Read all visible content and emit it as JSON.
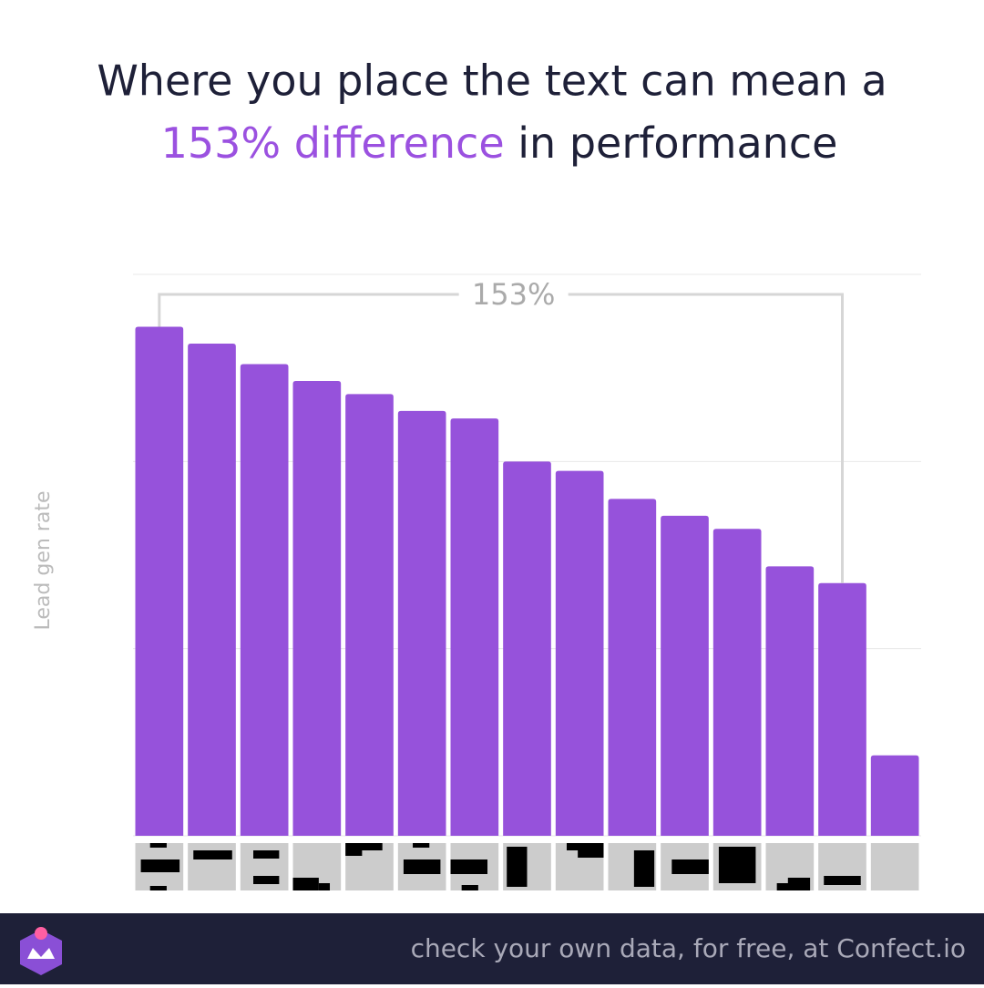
{
  "chart_data": {
    "type": "bar",
    "title_line1": "Where you place the text can mean a",
    "title_highlight": "153% difference",
    "title_rest": " in performance",
    "annotation": "153%",
    "y_label": "Lead gen rate",
    "footer": "check your own data, for free, at Confect.io",
    "categories": [
      null,
      null,
      null,
      null,
      null,
      null,
      null,
      null,
      null,
      null,
      null,
      null,
      null,
      null,
      null
    ],
    "values": [
      2.72,
      2.63,
      2.52,
      2.43,
      2.36,
      2.27,
      2.23,
      2.0,
      1.95,
      1.8,
      1.71,
      1.64,
      1.44,
      1.35,
      0.43
    ],
    "color": "#9652db",
    "ylim": [
      0,
      3
    ],
    "yticks": [
      0,
      1,
      2,
      3
    ],
    "grid": true
  }
}
